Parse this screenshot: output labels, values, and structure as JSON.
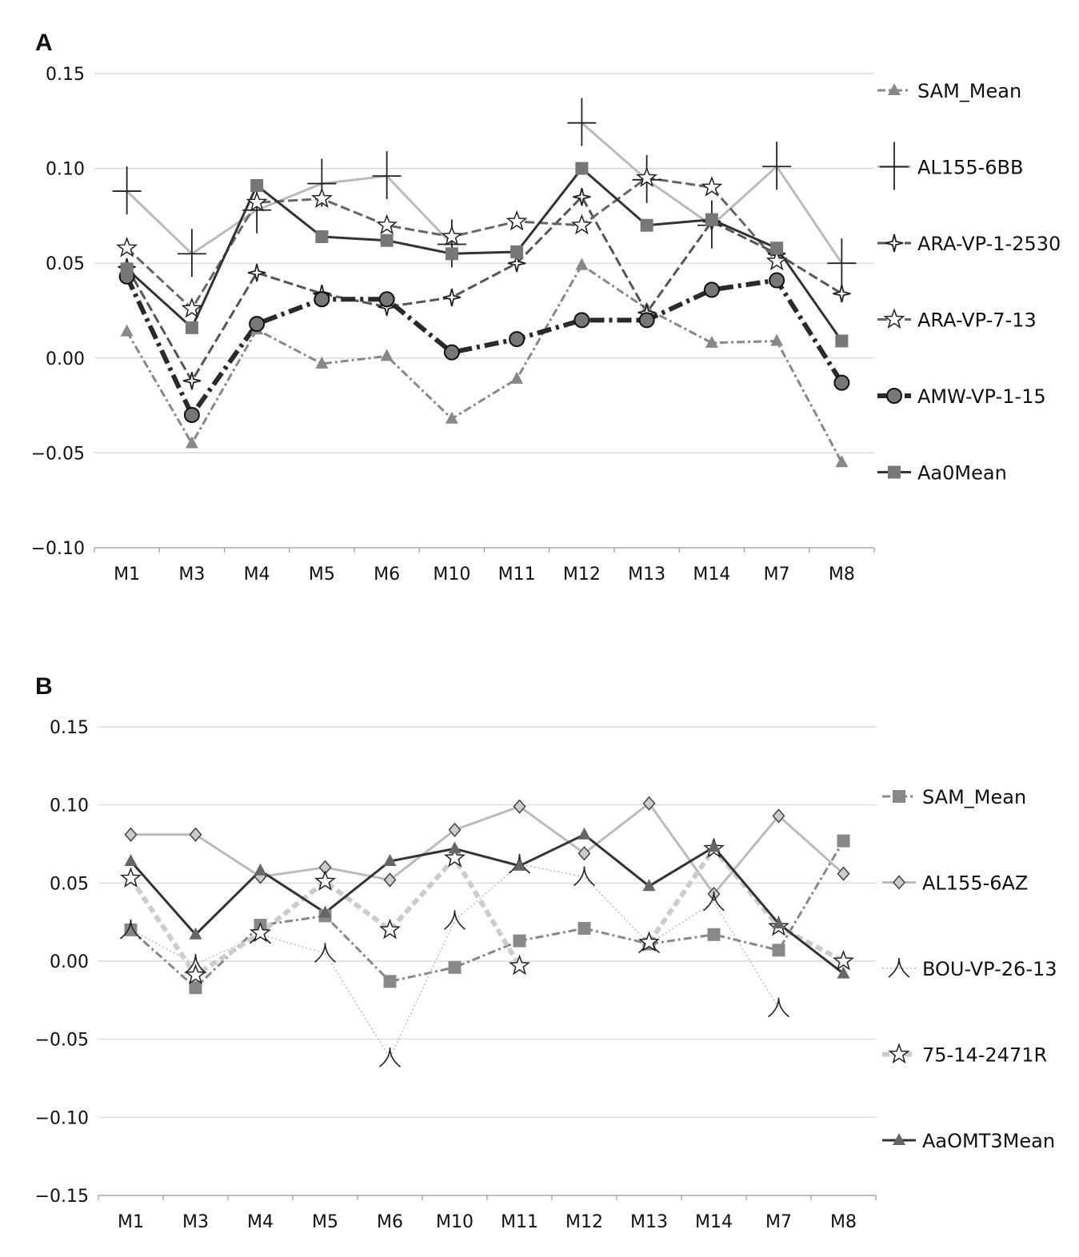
{
  "chart_data": [
    {
      "panel": "A",
      "type": "line",
      "categories": [
        "M1",
        "M3",
        "M4",
        "M5",
        "M6",
        "M10",
        "M11",
        "M12",
        "M13",
        "M14",
        "M7",
        "M8"
      ],
      "ylim": [
        -0.1,
        0.15
      ],
      "yticks": [
        0.15,
        0.1,
        0.05,
        0.0,
        -0.05,
        -0.1
      ],
      "ytick_labels": [
        "0.15",
        "0.10",
        "0.05",
        "0.00",
        "−0.05",
        "−0.10"
      ],
      "xlabel": "",
      "ylabel": "",
      "grid": true,
      "legend": "right",
      "series": [
        {
          "name": "SAM_Mean",
          "color": "#888888",
          "dash": "10,4,3,4",
          "width": 3,
          "marker": "triangle",
          "markerFill": "#888888",
          "values": [
            0.014,
            -0.045,
            0.015,
            -0.003,
            0.001,
            -0.032,
            -0.011,
            0.049,
            0.026,
            0.008,
            0.009,
            -0.055
          ]
        },
        {
          "name": "AL155-6BB",
          "color": "#bbbbbb",
          "dash": "",
          "width": 3,
          "marker": "cross4",
          "markerFill": "#ffffff",
          "markerStroke": "#222222",
          "values": [
            0.088,
            0.055,
            0.078,
            0.092,
            0.096,
            0.06,
            null,
            0.124,
            0.094,
            0.07,
            0.101,
            0.05
          ]
        },
        {
          "name": "ARA-VP-1-2530",
          "color": "#555555",
          "dash": "12,5",
          "width": 3,
          "marker": "star4",
          "markerFill": "#ffffff",
          "markerStroke": "#222222",
          "values": [
            0.048,
            -0.012,
            0.045,
            0.034,
            0.027,
            0.032,
            0.05,
            0.085,
            0.024,
            0.072,
            0.055,
            0.034
          ]
        },
        {
          "name": "ARA-VP-7-13",
          "color": "#666666",
          "dash": "12,5",
          "width": 3,
          "marker": "star5",
          "markerFill": "#ffffff",
          "markerStroke": "#222222",
          "values": [
            0.058,
            0.026,
            0.082,
            0.084,
            0.07,
            0.064,
            0.072,
            0.07,
            0.095,
            0.09,
            0.051,
            null
          ]
        },
        {
          "name": "AMW-VP-1-15",
          "color": "#2a2a2a",
          "dash": "18,6,4,6",
          "width": 6,
          "marker": "circle",
          "markerFill": "#777777",
          "markerStroke": "#111111",
          "values": [
            0.043,
            -0.03,
            0.018,
            0.031,
            0.031,
            0.003,
            0.01,
            0.02,
            0.02,
            0.036,
            0.041,
            -0.013
          ]
        },
        {
          "name": "Aa0Mean",
          "color": "#333333",
          "dash": "",
          "width": 3,
          "marker": "square",
          "markerFill": "#777777",
          "values": [
            0.047,
            0.016,
            0.091,
            0.064,
            0.062,
            0.055,
            0.056,
            0.1,
            0.07,
            0.073,
            0.058,
            0.009
          ]
        }
      ]
    },
    {
      "panel": "B",
      "type": "line",
      "categories": [
        "M1",
        "M3",
        "M4",
        "M5",
        "M6",
        "M10",
        "M11",
        "M12",
        "M13",
        "M14",
        "M7",
        "M8"
      ],
      "ylim": [
        -0.15,
        0.15
      ],
      "yticks": [
        0.15,
        0.1,
        0.05,
        0.0,
        -0.05,
        -0.1,
        -0.15
      ],
      "ytick_labels": [
        "0.15",
        "0.10",
        "0.05",
        "0.00",
        "−0.05",
        "−0.10",
        "−0.15"
      ],
      "xlabel": "",
      "ylabel": "",
      "grid": true,
      "legend": "right",
      "series": [
        {
          "name": "SAM_Mean",
          "color": "#888888",
          "dash": "10,4,3,4",
          "width": 3,
          "marker": "square",
          "markerFill": "#888888",
          "values": [
            0.02,
            -0.017,
            0.023,
            0.029,
            -0.013,
            -0.004,
            0.013,
            0.021,
            0.011,
            0.017,
            0.007,
            0.077
          ]
        },
        {
          "name": "AL155-6AZ",
          "color": "#bbbbbb",
          "dash": "",
          "width": 3,
          "marker": "diamond",
          "markerFill": "#cccccc",
          "markerStroke": "#444444",
          "values": [
            0.081,
            0.081,
            0.054,
            0.06,
            0.052,
            0.084,
            0.099,
            0.069,
            0.101,
            0.043,
            0.093,
            0.056
          ]
        },
        {
          "name": "BOU-VP-26-13",
          "color": "#bbbbbb",
          "dash": "2,3",
          "width": 1.5,
          "marker": "lambda",
          "markerFill": "none",
          "markerStroke": "#222222",
          "values": [
            0.02,
            -0.002,
            0.017,
            0.005,
            -0.062,
            0.026,
            0.062,
            0.054,
            0.011,
            0.038,
            -0.03,
            null
          ]
        },
        {
          "name": "75-14-2471R",
          "color": "#cccccc",
          "dash": "9,5",
          "width": 6,
          "marker": "star5",
          "markerFill": "#ffffff",
          "markerStroke": "#222222",
          "values": [
            0.053,
            -0.009,
            0.018,
            0.051,
            0.02,
            0.066,
            -0.003,
            null,
            0.012,
            0.072,
            0.022,
            0.0
          ]
        },
        {
          "name": "AaOMT3Mean",
          "color": "#333333",
          "dash": "",
          "width": 3,
          "marker": "triangle",
          "markerFill": "#666666",
          "values": [
            0.064,
            0.017,
            0.058,
            0.031,
            0.064,
            0.072,
            0.061,
            0.081,
            0.048,
            0.073,
            0.024,
            -0.008
          ]
        }
      ]
    }
  ]
}
